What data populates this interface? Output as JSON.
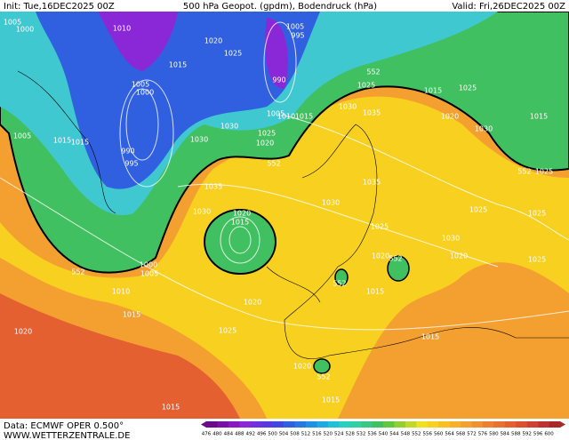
{
  "header": {
    "init": "Init: Tue,16DEC2025 00Z",
    "title": "500 hPa Geopot. (gpdm), Bodendruck (hPa)",
    "valid": "Valid: Fri,26DEC2025 00Z"
  },
  "footer": {
    "data": "Data: ECMWF OPER 0.500°",
    "site": "WWW.WETTERZENTRALE.DE"
  },
  "colorbar": {
    "ticks": [
      476,
      480,
      484,
      488,
      492,
      496,
      500,
      504,
      508,
      512,
      516,
      520,
      524,
      528,
      532,
      536,
      540,
      544,
      548,
      552,
      556,
      560,
      564,
      568,
      572,
      576,
      580,
      584,
      588,
      592,
      596,
      600
    ],
    "colors": [
      "#6a0a8a",
      "#7a10a8",
      "#8818c0",
      "#8a28d8",
      "#7030e0",
      "#5838e0",
      "#4048e0",
      "#3060e0",
      "#2878e0",
      "#2090e0",
      "#20a8e0",
      "#20c0d8",
      "#28d0c0",
      "#30d0a0",
      "#38c880",
      "#40c060",
      "#60c840",
      "#90d030",
      "#c0d828",
      "#f0e020",
      "#f8d020",
      "#f8c020",
      "#f8b028",
      "#f4a030",
      "#f09030",
      "#ec8030",
      "#e87030",
      "#e46030",
      "#dc5030",
      "#d04030",
      "#c03030",
      "#a82828"
    ]
  },
  "isobar_labels": [
    "1005",
    "1000",
    "1010",
    "1020",
    "1025",
    "1005",
    "995",
    "1015",
    "990",
    "552",
    "1025",
    "1015",
    "1025",
    "1005",
    "1000",
    "1030",
    "1035",
    "1020",
    "1015",
    "1005",
    "1010",
    "1015",
    "1030",
    "1025",
    "1020",
    "1030",
    "1005",
    "1015",
    "1015",
    "1030",
    "990",
    "995",
    "552",
    "552",
    "1025",
    "1035",
    "1035",
    "1030",
    "1030",
    "1020",
    "1015",
    "1025",
    "1025",
    "1025",
    "1030",
    "1020",
    "552",
    "1020",
    "1025",
    "1000",
    "1005",
    "552",
    "552",
    "1015",
    "1010",
    "1020",
    "1015",
    "1020",
    "1025",
    "1015",
    "1020",
    "552",
    "1015",
    "1015"
  ]
}
